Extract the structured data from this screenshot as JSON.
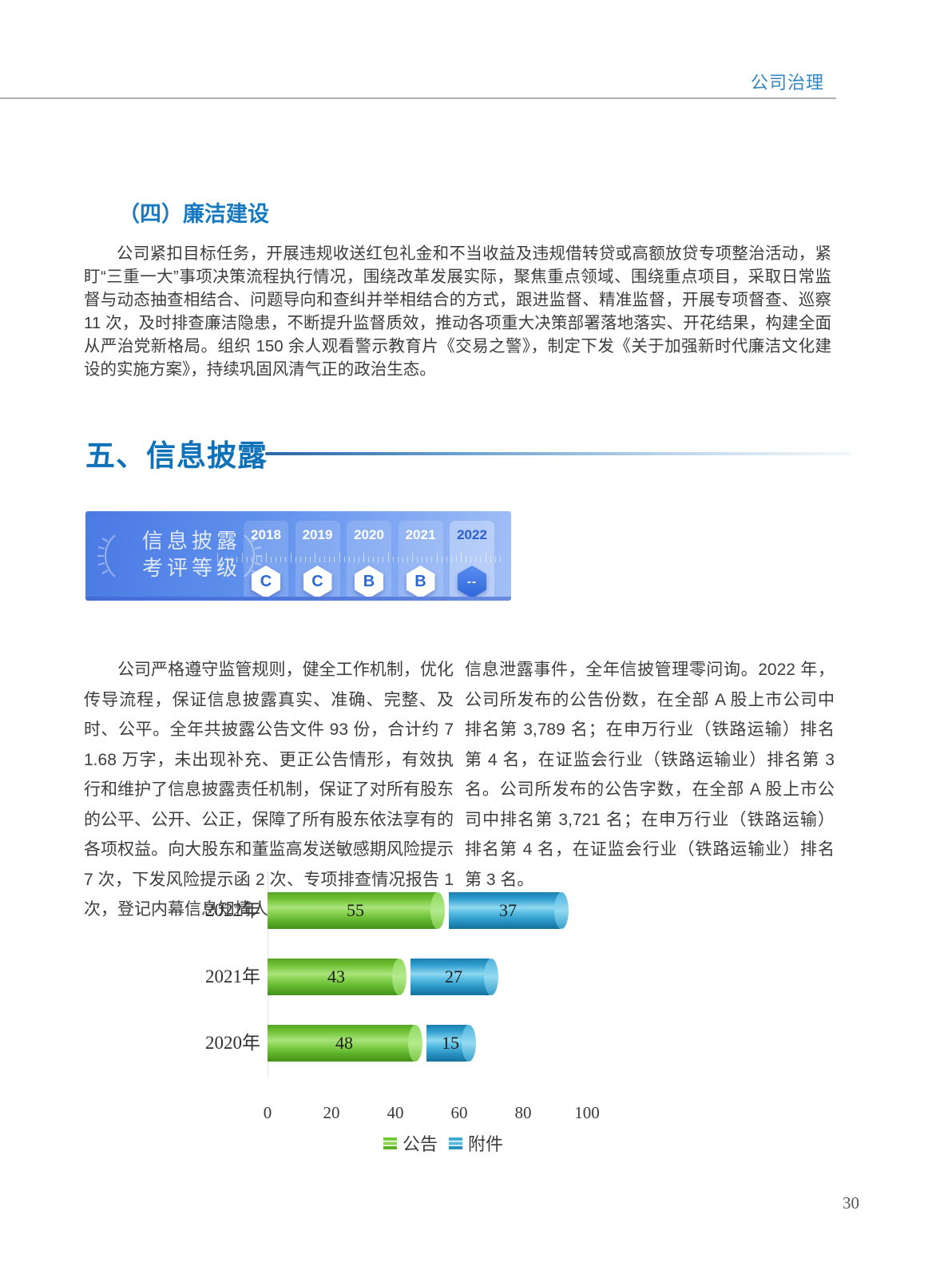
{
  "header": {
    "section_label": "公司治理"
  },
  "page": {
    "number": "30"
  },
  "integrity_section": {
    "title": "（四）廉洁建设",
    "body": "公司紧扣目标任务，开展违规收送红包礼金和不当收益及违规借转贷或高额放贷专项整治活动，紧盯“三重一大”事项决策流程执行情况，围绕改革发展实际，聚焦重点领域、围绕重点项目，采取日常监督与动态抽查相结合、问题导向和查纠并举相结合的方式，跟进监督、精准监督，开展专项督查、巡察 11 次，及时排查廉洁隐患，不断提升监督质效，推动各项重大决策部署落地落实、开花结果，构建全面从严治党新格局。组织 150 余人观看警示教育片《交易之警》，制定下发《关于加强新时代廉洁文化建设的实施方案》，持续巩固风清气正的政治生态。"
  },
  "disclosure_section": {
    "title": "五、信息披露",
    "banner": {
      "title_line1": "信息披露",
      "title_line2": "考评等级",
      "years": [
        {
          "year": "2018",
          "grade": "C",
          "highlight": false
        },
        {
          "year": "2019",
          "grade": "C",
          "highlight": false
        },
        {
          "year": "2020",
          "grade": "B",
          "highlight": false
        },
        {
          "year": "2021",
          "grade": "B",
          "highlight": false
        },
        {
          "year": "2022",
          "grade": "--",
          "highlight": true
        }
      ]
    },
    "left_column": "公司严格遵守监管规则，健全工作机制，优化传导流程，保证信息披露真实、准确、完整、及时、公平。全年共披露公告文件 93 份，合计约 71.68 万字，未出现补充、更正公告情形，有效执行和维护了信息披露责任机制，保证了对所有股东的公平、公开、公正，保障了所有股东依法享有的各项权益。向大股东和董监高发送敏感期风险提示 7 次，下发风险提示函 2 次、专项排查情况报告 1 次，登记内幕信息知情人 132 人，未发生内幕",
    "right_column": "信息泄露事件，全年信披管理零问询。2022 年，公司所发布的公告份数，在全部 A 股上市公司中排名第 3,789 名；在申万行业（铁路运输）排名第 4 名，在证监会行业（铁路运输业）排名第 3 名。公司所发布的公告字数，在全部 A 股上市公司中排名第 3,721 名；在申万行业（铁路运输）排名第 4 名，在证监会行业（铁路运输业）排名第 3 名。"
  },
  "chart_data": {
    "type": "bar",
    "orientation": "horizontal",
    "stacked": true,
    "title": "",
    "categories": [
      "2022年",
      "2021年",
      "2020年"
    ],
    "series": [
      {
        "name": "公告",
        "values": [
          55,
          43,
          48
        ],
        "color": "#6abf35"
      },
      {
        "name": "附件",
        "values": [
          37,
          27,
          15
        ],
        "color": "#2a94c5"
      }
    ],
    "xticks": [
      0,
      20,
      40,
      60,
      80,
      100
    ],
    "xlim": [
      0,
      100
    ],
    "grid": false,
    "legend_position": "bottom"
  }
}
